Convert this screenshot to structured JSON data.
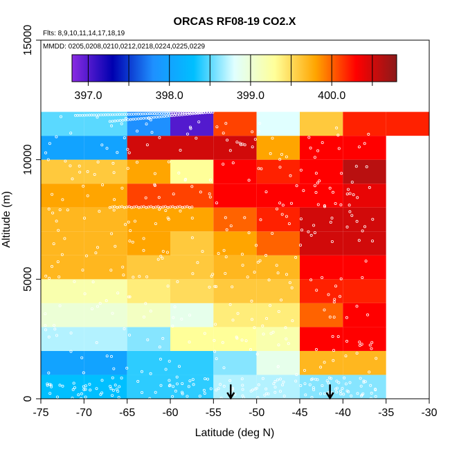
{
  "chart_data": {
    "type": "heatmap",
    "title": "ORCAS RF08-19 CO2.X",
    "flights_note": "Flts: 8,9,10,11,14,17,18,19",
    "dates_note": "MMDD: 0205,0208,0210,0212,0218,0224,0225,0229",
    "xlabel": "Latitude (deg N)",
    "ylabel": "Altitude (m)",
    "xlim": [
      -75,
      -30
    ],
    "ylim": [
      0,
      15000
    ],
    "x_ticks": [
      -75,
      -70,
      -65,
      -60,
      -55,
      -50,
      -45,
      -40,
      -35,
      -30
    ],
    "x_tick_labels": [
      "-75",
      "-70",
      "-65",
      "-60",
      "-55",
      "-50",
      "-45",
      "-40",
      "-35",
      "-30"
    ],
    "y_ticks": [
      0,
      5000,
      10000,
      15000
    ],
    "y_tick_labels": [
      "0",
      "5000",
      "10000",
      "15000"
    ],
    "colorbar": {
      "min": 396.8,
      "max": 400.8,
      "ticks": [
        397.0,
        398.0,
        399.0,
        400.0
      ],
      "tick_labels": [
        "397.0",
        "398.0",
        "399.0",
        "400.0"
      ],
      "colors": [
        "#8a2be2",
        "#0000b0",
        "#1e90ff",
        "#00bfff",
        "#e0ffff",
        "#ffff99",
        "#ffa500",
        "#ff0000",
        "#8b1a1a"
      ]
    },
    "lat_bins": [
      -75,
      -70,
      -65,
      -60,
      -55,
      -50,
      -45,
      -40,
      -35
    ],
    "alt_bins": [
      0,
      1000,
      2000,
      3000,
      4000,
      5000,
      6000,
      7000,
      8000,
      9000,
      10000,
      11000
    ],
    "grid_values": [
      [
        398.3,
        398.3,
        398.4,
        398.4,
        398.7,
        398.7,
        398.6,
        398.6
      ],
      [
        398.0,
        398.0,
        398.4,
        398.4,
        398.6,
        398.9,
        399.7,
        399.7
      ],
      [
        398.7,
        398.7,
        398.6,
        399.3,
        399.3,
        399.2,
        400.3,
        400.3
      ],
      [
        399.0,
        399.0,
        399.1,
        398.9,
        399.4,
        399.4,
        400.0,
        400.3
      ],
      [
        399.2,
        399.2,
        399.4,
        399.5,
        399.6,
        399.6,
        400.2,
        400.2
      ],
      [
        399.7,
        399.7,
        399.6,
        399.6,
        399.7,
        399.7,
        400.3,
        400.3
      ],
      [
        399.7,
        399.7,
        399.8,
        399.6,
        399.8,
        400.0,
        400.5,
        400.5
      ],
      [
        399.7,
        399.7,
        399.8,
        399.8,
        400.0,
        400.2,
        400.5,
        400.5
      ],
      [
        399.8,
        399.8,
        400.1,
        400.1,
        400.3,
        400.3,
        400.3,
        400.4
      ],
      [
        399.6,
        399.6,
        399.8,
        399.3,
        400.3,
        400.2,
        400.3,
        400.6
      ],
      [
        398.0,
        398.0,
        400.5,
        400.5,
        400.5,
        399.8,
        400.3,
        400.3
      ],
      [
        398.5,
        398.5,
        397.8,
        397.0,
        400.1,
        398.8,
        399.6,
        400.2
      ]
    ],
    "top_extra_cell": {
      "lat": [
        -35,
        -30
      ],
      "alt": [
        11000,
        12000
      ],
      "value": 400.2
    },
    "arrows_at_latitude": [
      -53,
      -41.5
    ],
    "samples": "white open circles marking flight samples"
  }
}
